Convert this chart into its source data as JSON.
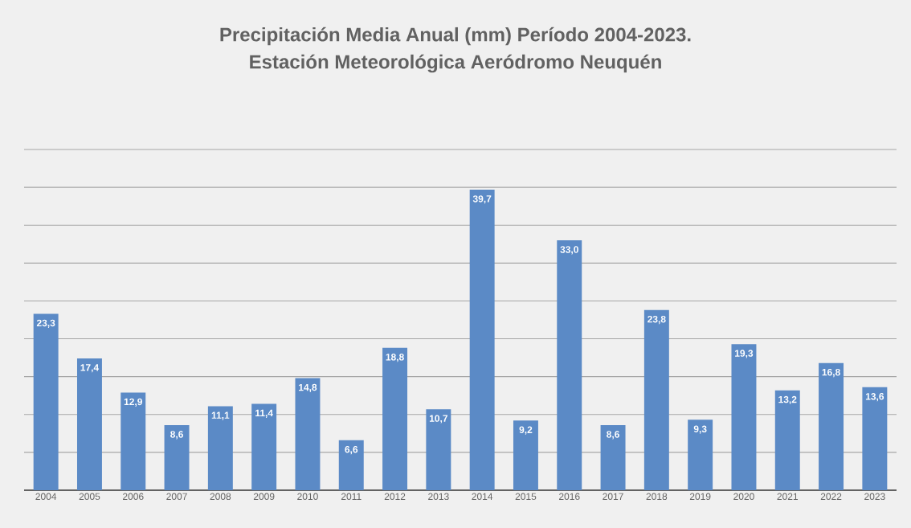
{
  "chart_data": {
    "type": "bar",
    "title": "Precipitación Media Anual (mm) Período 2004-2023.",
    "subtitle": "Estación Meteorológica Aeródromo Neuquén",
    "categories": [
      "2004",
      "2005",
      "2006",
      "2007",
      "2008",
      "2009",
      "2010",
      "2011",
      "2012",
      "2013",
      "2014",
      "2015",
      "2016",
      "2017",
      "2018",
      "2019",
      "2020",
      "2021",
      "2022",
      "2023"
    ],
    "values": [
      23.3,
      17.4,
      12.9,
      8.6,
      11.1,
      11.4,
      14.8,
      6.6,
      18.8,
      10.7,
      39.7,
      9.2,
      33.0,
      8.6,
      23.8,
      9.3,
      19.3,
      13.2,
      16.8,
      13.6
    ],
    "value_labels": [
      "23,3",
      "17,4",
      "12,9",
      "8,6",
      "11,1",
      "11,4",
      "14,8",
      "6,6",
      "18,8",
      "10,7",
      "39,7",
      "9,2",
      "33,0",
      "8,6",
      "23,8",
      "9,3",
      "19,3",
      "13,2",
      "16,8",
      "13,6"
    ],
    "color": "#5b8ac6",
    "ylim": [
      0,
      45
    ],
    "yticks": [
      {
        "value": 0,
        "label": null
      },
      {
        "value": 5,
        "label": null
      },
      {
        "value": 10,
        "label": null
      },
      {
        "value": 15,
        "label": null
      },
      {
        "value": 20,
        "label": null
      },
      {
        "value": 25,
        "label": null
      },
      {
        "value": 30,
        "label": null
      },
      {
        "value": 35,
        "label": null
      },
      {
        "value": 40,
        "label": null
      },
      {
        "value": 45,
        "label": null
      }
    ],
    "tick_labels": "x",
    "grid": "y"
  }
}
